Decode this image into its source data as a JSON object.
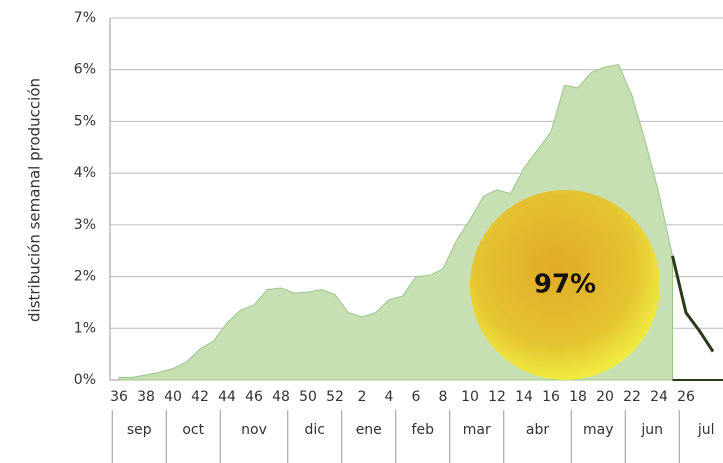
{
  "chart_data": {
    "type": "area",
    "y_axis_label": "distribución semanal producción",
    "annotation": "97%",
    "categories": [
      "36",
      null,
      "38",
      null,
      "40",
      null,
      "42",
      null,
      "44",
      null,
      "46",
      null,
      "48",
      null,
      "50",
      null,
      "52",
      null,
      "2",
      null,
      "4",
      null,
      "6",
      null,
      "8",
      null,
      "10",
      null,
      "12",
      null,
      "14",
      null,
      "16",
      null,
      "18",
      null,
      "20",
      null,
      "22",
      null,
      "24",
      null,
      "26",
      null,
      null
    ],
    "months": [
      "sep",
      "oct",
      "nov",
      "dic",
      "ene",
      "feb",
      "mar",
      "abr",
      "may",
      "jun",
      "jul"
    ],
    "series": [
      {
        "color": "#c6e0b4",
        "values": [
          0.05,
          0.05,
          0.1,
          0.15,
          0.22,
          0.35,
          0.6,
          0.75,
          1.1,
          1.35,
          1.45,
          1.75,
          1.78,
          1.68,
          1.7,
          1.75,
          1.65,
          1.3,
          1.22,
          1.3,
          1.55,
          1.62,
          2.0,
          2.02,
          2.15,
          2.7,
          3.1,
          3.55,
          3.68,
          3.6,
          4.1,
          4.45,
          4.8,
          5.7,
          5.65,
          5.95,
          6.05,
          6.1,
          5.5,
          4.6,
          3.6,
          2.4,
          null,
          null,
          null
        ]
      },
      {
        "color": "#2b3a1a",
        "values": [
          null,
          null,
          null,
          null,
          null,
          null,
          null,
          null,
          null,
          null,
          null,
          null,
          null,
          null,
          null,
          null,
          null,
          null,
          null,
          null,
          null,
          null,
          null,
          null,
          null,
          null,
          null,
          null,
          null,
          null,
          null,
          null,
          null,
          null,
          null,
          null,
          null,
          null,
          null,
          null,
          null,
          2.4,
          1.3,
          0.95,
          0.55
        ]
      }
    ],
    "ylim": [
      0,
      7
    ],
    "yticks": [
      {
        "value": 0,
        "label": "0%"
      },
      {
        "value": 1,
        "label": "1%"
      },
      {
        "value": 2,
        "label": "2%"
      },
      {
        "value": 3,
        "label": "3%"
      },
      {
        "value": 4,
        "label": "4%"
      },
      {
        "value": 5,
        "label": "5%"
      },
      {
        "value": 6,
        "label": "6%"
      },
      {
        "value": 7,
        "label": "7%"
      }
    ],
    "grid": true
  }
}
